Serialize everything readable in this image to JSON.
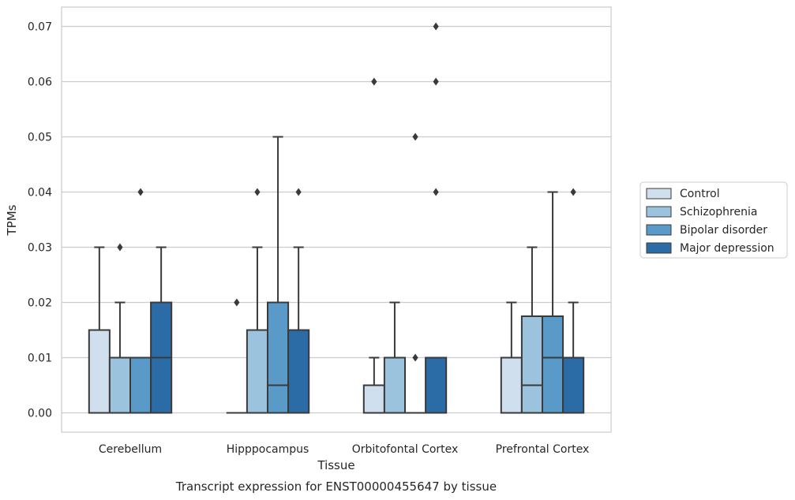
{
  "chart_data": {
    "type": "box",
    "title": "",
    "caption": "Transcript expression for ENST00000455647 by tissue",
    "xlabel": "Tissue",
    "ylabel": "TPMs",
    "ylim": [
      -0.0035,
      0.0735
    ],
    "yticks": [
      0.0,
      0.01,
      0.02,
      0.03,
      0.04,
      0.05,
      0.06,
      0.07
    ],
    "ytick_labels": [
      "0.00",
      "0.01",
      "0.02",
      "0.03",
      "0.04",
      "0.05",
      "0.06",
      "0.07"
    ],
    "grid": "horizontal",
    "legend_position": "right, outside plot",
    "categories": [
      "Cerebellum",
      "Hipppocampus",
      "Orbitofontal Cortex",
      "Prefrontal Cortex"
    ],
    "series": [
      {
        "name": "Control",
        "color": "#cfdfee",
        "boxes": [
          {
            "whislo": 0.0,
            "q1": 0.0,
            "med": 0.0,
            "q3": 0.015,
            "whishi": 0.03,
            "fliers": []
          },
          {
            "whislo": 0.0,
            "q1": 0.0,
            "med": 0.0,
            "q3": 0.0,
            "whishi": 0.0,
            "fliers": [
              0.02
            ]
          },
          {
            "whislo": 0.0,
            "q1": 0.0,
            "med": 0.0,
            "q3": 0.005,
            "whishi": 0.01,
            "fliers": [
              0.06
            ]
          },
          {
            "whislo": 0.0,
            "q1": 0.0,
            "med": 0.0,
            "q3": 0.01,
            "whishi": 0.02,
            "fliers": []
          }
        ]
      },
      {
        "name": "Schizophrenia",
        "color": "#9bc3dd",
        "boxes": [
          {
            "whislo": 0.0,
            "q1": 0.0,
            "med": 0.0,
            "q3": 0.01,
            "whishi": 0.02,
            "fliers": [
              0.03
            ]
          },
          {
            "whislo": 0.0,
            "q1": 0.0,
            "med": 0.0,
            "q3": 0.015,
            "whishi": 0.03,
            "fliers": [
              0.04
            ]
          },
          {
            "whislo": 0.0,
            "q1": 0.0,
            "med": 0.0,
            "q3": 0.01,
            "whishi": 0.02,
            "fliers": []
          },
          {
            "whislo": 0.0,
            "q1": 0.0,
            "med": 0.005,
            "q3": 0.0175,
            "whishi": 0.03,
            "fliers": []
          }
        ]
      },
      {
        "name": "Bipolar disorder",
        "color": "#5a9ac8",
        "boxes": [
          {
            "whislo": 0.0,
            "q1": 0.0,
            "med": 0.0,
            "q3": 0.01,
            "whishi": 0.01,
            "fliers": [
              0.04
            ]
          },
          {
            "whislo": 0.0,
            "q1": 0.0,
            "med": 0.005,
            "q3": 0.02,
            "whishi": 0.05,
            "fliers": []
          },
          {
            "whislo": 0.0,
            "q1": 0.0,
            "med": 0.0,
            "q3": 0.0,
            "whishi": 0.0,
            "fliers": [
              0.01,
              0.05
            ]
          },
          {
            "whislo": 0.0,
            "q1": 0.0,
            "med": 0.01,
            "q3": 0.0175,
            "whishi": 0.04,
            "fliers": []
          }
        ]
      },
      {
        "name": "Major depression",
        "color": "#2b6ba6",
        "boxes": [
          {
            "whislo": 0.0,
            "q1": 0.0,
            "med": 0.01,
            "q3": 0.02,
            "whishi": 0.03,
            "fliers": []
          },
          {
            "whislo": 0.0,
            "q1": 0.0,
            "med": 0.0,
            "q3": 0.015,
            "whishi": 0.03,
            "fliers": [
              0.04
            ]
          },
          {
            "whislo": 0.0,
            "q1": 0.0,
            "med": 0.0,
            "q3": 0.01,
            "whishi": 0.01,
            "fliers": [
              0.04,
              0.06,
              0.07
            ]
          },
          {
            "whislo": 0.0,
            "q1": 0.0,
            "med": 0.0,
            "q3": 0.01,
            "whishi": 0.02,
            "fliers": [
              0.04
            ]
          }
        ]
      }
    ],
    "colors": {
      "edge": "#3a3a3a",
      "grid": "#cccccc",
      "frame": "#cccccc",
      "text": "#262626"
    }
  }
}
